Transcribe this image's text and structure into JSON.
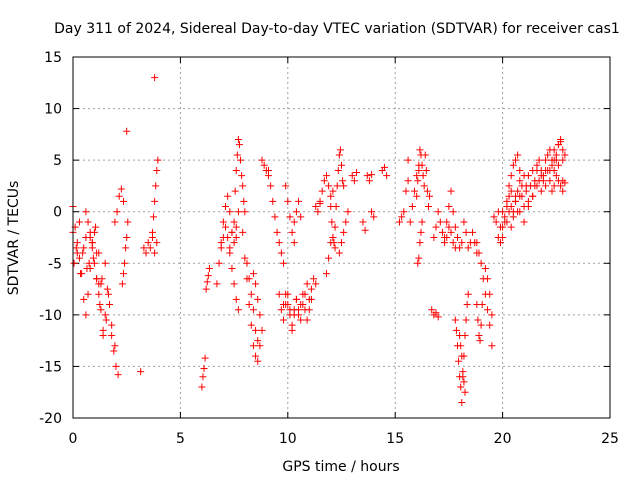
{
  "chart_data": {
    "type": "scatter",
    "title": "Day 311 of 2024, Sidereal Day-to-day VTEC variation (SDTVAR) for receiver cas1",
    "xlabel": "GPS time / hours",
    "ylabel": "SDTVAR / TECUs",
    "xlim": [
      0,
      25
    ],
    "ylim": [
      -20,
      15
    ],
    "xticks": [
      "0",
      "5",
      "10",
      "15",
      "20",
      "25"
    ],
    "yticks": [
      "15",
      "10",
      "5",
      "0",
      "-5",
      "-10",
      "-15",
      "-20"
    ],
    "grid": true,
    "marker": "+",
    "color": "#ff0000",
    "segments": [
      {
        "x": [
          0.0,
          0.1,
          0.2,
          0.3,
          0.4,
          0.5,
          0.6,
          0.7,
          0.8,
          0.9,
          1.0,
          1.1,
          1.2,
          1.3,
          1.4,
          1.5,
          1.6,
          1.7,
          1.8,
          1.9,
          2.0,
          2.1
        ],
        "y": [
          0.5,
          -1.5,
          -3.0,
          -4.5,
          -6.0,
          -8.5,
          -10.0,
          -8.0,
          -5.5,
          -3.0,
          -2.0,
          -4.0,
          -7.0,
          -9.5,
          -11.5,
          -10.0,
          -7.5,
          -9.0,
          -12.0,
          -13.5,
          -15.0,
          -15.8
        ]
      },
      {
        "x": [
          0.0,
          0.15,
          0.3,
          0.45,
          0.6,
          0.75,
          0.9,
          1.05,
          1.2,
          1.35,
          1.5,
          1.65,
          1.8,
          1.95
        ],
        "y": [
          -2.0,
          -3.5,
          -1.0,
          -4.0,
          -2.5,
          -5.0,
          -3.0,
          -1.5,
          -4.0,
          -6.5,
          -5.0,
          -8.0,
          -11.0,
          -13.0
        ]
      },
      {
        "x": [
          0.05,
          0.2,
          0.35,
          0.5,
          0.65,
          0.8,
          0.95,
          1.1,
          1.25,
          1.4,
          1.55
        ],
        "y": [
          -5.0,
          -4.0,
          -6.0,
          -3.5,
          -5.5,
          -2.5,
          -4.5,
          -6.5,
          -9.0,
          -12.0,
          -10.5
        ]
      },
      {
        "x": [
          0.6,
          0.7,
          0.8,
          0.9,
          1.0,
          1.1,
          1.2,
          1.3
        ],
        "y": [
          0.0,
          -1.0,
          -2.0,
          -3.5,
          -5.0,
          -6.5,
          -8.0,
          -7.0
        ]
      },
      {
        "x": [
          1.95,
          2.05,
          2.15,
          2.25,
          2.35
        ],
        "y": [
          -1.0,
          0.0,
          1.5,
          2.2,
          1.0
        ]
      },
      {
        "x": [
          2.3,
          2.35,
          2.4,
          2.45,
          2.5,
          2.55
        ],
        "y": [
          -7.0,
          -6.0,
          -5.0,
          -3.5,
          -2.5,
          -1.0
        ]
      },
      {
        "x": [
          2.5
        ],
        "y": [
          7.8
        ]
      },
      {
        "x": [
          3.15
        ],
        "y": [
          -15.5
        ]
      },
      {
        "x": [
          3.3,
          3.4,
          3.5,
          3.6,
          3.7,
          3.8,
          3.9
        ],
        "y": [
          -3.5,
          -4.0,
          -3.0,
          -3.5,
          -2.5,
          -4.0,
          -3.0
        ]
      },
      {
        "x": [
          3.7,
          3.75,
          3.8,
          3.85,
          3.9
        ],
        "y": [
          -2.0,
          -0.5,
          1.0,
          2.5,
          4.0
        ]
      },
      {
        "x": [
          3.95
        ],
        "y": [
          5.0
        ]
      },
      {
        "x": [
          3.8
        ],
        "y": [
          13.0
        ]
      },
      {
        "x": [
          6.0,
          6.05,
          6.1,
          6.15
        ],
        "y": [
          -17.0,
          -16.0,
          -15.2,
          -14.2
        ]
      },
      {
        "x": [
          6.2,
          6.25,
          6.3,
          6.35
        ],
        "y": [
          -7.5,
          -6.8,
          -6.2,
          -5.5
        ]
      },
      {
        "x": [
          6.7,
          6.8,
          6.9,
          7.0,
          7.1,
          7.2,
          7.3,
          7.4,
          7.5,
          7.6,
          7.7
        ],
        "y": [
          -7.0,
          -5.0,
          -3.0,
          -1.0,
          0.5,
          1.5,
          0.0,
          -2.0,
          -3.0,
          -1.5,
          0.0
        ]
      },
      {
        "x": [
          6.9,
          7.0,
          7.1,
          7.2,
          7.3,
          7.4,
          7.5,
          7.6
        ],
        "y": [
          -3.5,
          -2.5,
          -1.5,
          -2.5,
          -3.5,
          -2.0,
          -1.0,
          -2.5
        ]
      },
      {
        "x": [
          7.3,
          7.4,
          7.5,
          7.6,
          7.7
        ],
        "y": [
          -4.0,
          -5.5,
          -7.0,
          -8.5,
          -9.5
        ]
      },
      {
        "x": [
          7.55,
          7.6,
          7.65,
          7.7,
          7.75,
          7.8,
          7.85,
          7.9,
          7.95,
          8.0
        ],
        "y": [
          2.0,
          4.0,
          5.5,
          7.0,
          6.5,
          5.0,
          3.5,
          2.5,
          1.0,
          0.0
        ]
      },
      {
        "x": [
          7.9,
          8.0,
          8.1,
          8.2,
          8.3,
          8.4,
          8.5,
          8.6
        ],
        "y": [
          -2.0,
          -4.5,
          -6.5,
          -9.0,
          -11.0,
          -13.0,
          -14.0,
          -14.5
        ]
      },
      {
        "x": [
          8.1,
          8.2,
          8.3,
          8.4,
          8.5,
          8.6,
          8.7
        ],
        "y": [
          -5.0,
          -6.5,
          -8.0,
          -9.5,
          -11.5,
          -12.5,
          -13.0
        ]
      },
      {
        "x": [
          8.4,
          8.5,
          8.6,
          8.7,
          8.8
        ],
        "y": [
          -6.0,
          -7.0,
          -8.5,
          -10.0,
          -11.5
        ]
      },
      {
        "x": [
          8.8,
          8.9,
          9.0,
          9.1
        ],
        "y": [
          5.0,
          4.5,
          4.0,
          3.5
        ]
      },
      {
        "x": [
          9.1,
          9.2,
          9.3,
          9.4,
          9.5,
          9.6,
          9.7,
          9.8
        ],
        "y": [
          4.0,
          2.5,
          1.0,
          -0.5,
          -2.0,
          -3.0,
          -4.0,
          -5.0
        ]
      },
      {
        "x": [
          9.6,
          9.7,
          9.8,
          9.9,
          10.0,
          10.1,
          10.2,
          10.3,
          10.4,
          10.5,
          10.6,
          10.7,
          10.8,
          10.9,
          11.0,
          11.1,
          11.2,
          11.3
        ],
        "y": [
          -8.0,
          -9.5,
          -10.5,
          -9.0,
          -8.0,
          -9.5,
          -11.0,
          -10.0,
          -8.5,
          -9.5,
          -10.5,
          -9.0,
          -8.0,
          -7.0,
          -8.5,
          -7.5,
          -6.5,
          -7.0
        ]
      },
      {
        "x": [
          9.8,
          9.9,
          10.0,
          10.1,
          10.2,
          10.3,
          10.4,
          10.5,
          10.6,
          10.7,
          10.8,
          10.9,
          11.0,
          11.1
        ],
        "y": [
          -9.0,
          -8.0,
          -9.0,
          -10.0,
          -11.5,
          -9.5,
          -8.5,
          -10.0,
          -9.0,
          -8.0,
          -9.5,
          -10.5,
          -9.5,
          -8.5
        ]
      },
      {
        "x": [
          9.9,
          10.0,
          10.1,
          10.2,
          10.3
        ],
        "y": [
          2.5,
          1.0,
          -0.5,
          -2.0,
          -3.0
        ]
      },
      {
        "x": [
          10.3,
          10.4,
          10.5,
          10.6
        ],
        "y": [
          -1.0,
          0.0,
          1.0,
          -0.5
        ]
      },
      {
        "x": [
          11.3,
          11.4,
          11.5
        ],
        "y": [
          0.5,
          0.0,
          0.8
        ]
      },
      {
        "x": [
          11.5,
          11.6,
          11.7,
          11.8,
          11.9,
          12.0,
          12.1
        ],
        "y": [
          1.0,
          2.0,
          3.0,
          3.5,
          2.5,
          1.5,
          2.0
        ]
      },
      {
        "x": [
          11.8,
          11.9,
          12.0,
          12.1,
          12.2
        ],
        "y": [
          -6.0,
          -4.5,
          -3.0,
          -2.5,
          -3.5
        ]
      },
      {
        "x": [
          12.0,
          12.05,
          12.1,
          12.15,
          12.2,
          12.25,
          12.3,
          12.35,
          12.4,
          12.45,
          12.5,
          12.55,
          12.6
        ],
        "y": [
          0.5,
          -1.0,
          -2.5,
          -3.0,
          -1.5,
          0.5,
          2.5,
          4.0,
          5.5,
          6.0,
          4.5,
          3.0,
          2.5
        ]
      },
      {
        "x": [
          12.4,
          12.5,
          12.6,
          12.7,
          12.8
        ],
        "y": [
          -4.0,
          -3.0,
          -2.0,
          -1.0,
          0.0
        ]
      },
      {
        "x": [
          13.0,
          13.1,
          13.2
        ],
        "y": [
          3.5,
          3.0,
          3.8
        ]
      },
      {
        "x": [
          13.5,
          13.6
        ],
        "y": [
          -1.0,
          -1.8
        ]
      },
      {
        "x": [
          13.7,
          13.8,
          13.9
        ],
        "y": [
          3.5,
          3.0,
          3.6
        ]
      },
      {
        "x": [
          13.9,
          14.0
        ],
        "y": [
          0.0,
          -0.5
        ]
      },
      {
        "x": [
          14.4,
          14.5,
          14.6
        ],
        "y": [
          4.0,
          4.3,
          3.5
        ]
      },
      {
        "x": [
          15.2,
          15.3,
          15.4,
          15.5,
          15.6
        ],
        "y": [
          -1.0,
          -0.5,
          0.0,
          2.0,
          3.0
        ]
      },
      {
        "x": [
          15.6
        ],
        "y": [
          5.0
        ]
      },
      {
        "x": [
          15.7,
          15.8,
          15.9,
          16.0,
          16.1
        ],
        "y": [
          -1.0,
          0.5,
          2.0,
          3.5,
          4.0
        ]
      },
      {
        "x": [
          16.0,
          16.05,
          16.1,
          16.15,
          16.2,
          16.25,
          16.3,
          16.35,
          16.4,
          16.45,
          16.5,
          16.55,
          16.6
        ],
        "y": [
          1.5,
          3.0,
          4.5,
          6.0,
          5.5,
          4.5,
          3.5,
          2.5,
          5.5,
          4.0,
          2.0,
          0.5,
          1.5
        ]
      },
      {
        "x": [
          16.05,
          16.1,
          16.15,
          16.2,
          16.25
        ],
        "y": [
          -5.0,
          -4.5,
          -3.0,
          -2.0,
          -1.0
        ]
      },
      {
        "x": [
          16.7,
          16.8,
          16.9,
          17.0
        ],
        "y": [
          -9.5,
          -10.0,
          -9.8,
          -10.2
        ]
      },
      {
        "x": [
          16.8,
          16.9,
          17.0,
          17.1,
          17.2,
          17.3,
          17.4,
          17.5,
          17.6,
          17.7,
          17.8
        ],
        "y": [
          -2.5,
          -1.5,
          0.0,
          -1.0,
          -2.0,
          -3.0,
          -2.5,
          -1.5,
          -2.0,
          -3.0,
          -3.5
        ]
      },
      {
        "x": [
          17.3,
          17.4,
          17.5,
          17.6,
          17.7,
          17.8,
          17.9,
          18.0,
          18.1
        ],
        "y": [
          -2.5,
          -1.0,
          0.5,
          2.0,
          0.0,
          -1.5,
          -2.5,
          -3.5,
          -3.0
        ]
      },
      {
        "x": [
          17.8,
          17.85,
          17.9,
          17.95,
          18.0,
          18.05,
          18.1,
          18.15,
          18.2,
          18.25,
          18.3,
          18.35,
          18.4
        ],
        "y": [
          -10.5,
          -11.5,
          -13.0,
          -14.5,
          -16.0,
          -17.0,
          -18.5,
          -16.0,
          -14.0,
          -12.0,
          -10.5,
          -9.0,
          -8.0
        ]
      },
      {
        "x": [
          18.0,
          18.05,
          18.1,
          18.15,
          18.2,
          18.25
        ],
        "y": [
          -12.0,
          -13.0,
          -14.0,
          -15.5,
          -16.5,
          -17.5
        ]
      },
      {
        "x": [
          18.2,
          18.3,
          18.4,
          18.5,
          18.6,
          18.7,
          18.8
        ],
        "y": [
          -1.0,
          -2.0,
          -3.5,
          -3.0,
          -2.0,
          -3.0,
          -4.0
        ]
      },
      {
        "x": [
          18.8,
          18.85,
          18.9,
          18.95,
          19.0,
          19.05
        ],
        "y": [
          -9.0,
          -10.5,
          -12.0,
          -12.5,
          -11.0,
          -9.0
        ]
      },
      {
        "x": [
          18.8,
          18.9,
          19.0,
          19.1,
          19.2,
          19.3,
          19.4,
          19.5
        ],
        "y": [
          -3.0,
          -4.0,
          -5.0,
          -6.5,
          -8.0,
          -9.5,
          -11.0,
          -13.0
        ]
      },
      {
        "x": [
          19.2,
          19.3,
          19.4,
          19.5
        ],
        "y": [
          -5.5,
          -6.5,
          -8.0,
          -10.0
        ]
      },
      {
        "x": [
          19.6,
          19.7,
          19.8,
          19.9,
          20.0,
          20.1,
          20.2,
          20.3,
          20.4,
          20.5,
          20.6,
          20.7,
          20.8,
          20.9,
          21.0,
          21.1,
          21.2,
          21.3,
          21.4,
          21.5,
          21.6,
          21.7,
          21.8,
          21.9,
          22.0,
          22.1,
          22.2,
          22.3,
          22.4,
          22.5,
          22.6,
          22.7,
          22.8,
          22.9
        ],
        "y": [
          -0.5,
          -1.0,
          0.0,
          -1.5,
          -2.5,
          -1.0,
          0.5,
          1.5,
          0.5,
          -0.5,
          1.0,
          2.0,
          3.0,
          1.5,
          0.5,
          2.0,
          3.5,
          2.5,
          1.5,
          2.5,
          4.0,
          3.0,
          2.0,
          3.5,
          5.0,
          4.0,
          3.0,
          4.5,
          6.0,
          5.0,
          6.5,
          7.0,
          6.0,
          5.5
        ]
      },
      {
        "x": [
          19.8,
          19.9,
          20.0,
          20.1,
          20.2,
          20.3,
          20.4,
          20.5,
          20.6,
          20.7,
          20.8,
          20.9,
          21.0,
          21.1,
          21.2,
          21.3,
          21.4,
          21.5,
          21.6,
          21.7,
          21.8,
          21.9,
          22.0,
          22.1,
          22.2,
          22.3,
          22.4,
          22.5,
          22.6,
          22.7,
          22.8
        ],
        "y": [
          -2.5,
          -3.0,
          -1.5,
          -0.5,
          -1.0,
          0.0,
          -1.5,
          0.0,
          1.0,
          0.0,
          1.5,
          2.5,
          3.5,
          2.5,
          1.0,
          2.5,
          4.0,
          3.0,
          4.5,
          5.0,
          4.0,
          3.0,
          4.0,
          5.5,
          6.0,
          5.0,
          4.0,
          5.5,
          6.5,
          6.8,
          5.0
        ]
      },
      {
        "x": [
          20.0,
          20.2,
          20.4,
          20.6,
          20.8,
          21.0,
          21.2,
          21.4,
          21.6,
          21.8,
          22.0,
          22.2,
          22.4,
          22.6,
          22.8
        ],
        "y": [
          0.0,
          1.0,
          2.0,
          1.5,
          0.0,
          -1.0,
          0.5,
          1.5,
          2.5,
          3.5,
          2.5,
          4.0,
          5.0,
          4.5,
          3.0
        ]
      },
      {
        "x": [
          20.3,
          20.4,
          20.5,
          20.6,
          20.7,
          20.8
        ],
        "y": [
          2.5,
          3.5,
          4.5,
          5.0,
          5.5,
          4.0
        ]
      },
      {
        "x": [
          22.3,
          22.4,
          22.5,
          22.6,
          22.7,
          22.8,
          22.9
        ],
        "y": [
          2.0,
          2.5,
          3.5,
          3.0,
          2.5,
          2.0,
          2.8
        ]
      }
    ]
  }
}
